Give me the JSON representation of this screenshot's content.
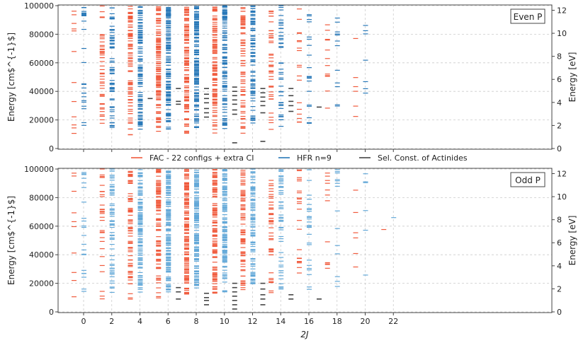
{
  "chart_data": {
    "type": "scatter",
    "description_x": "2J",
    "panels": [
      {
        "parity_label": "Even P",
        "ylabel_left": "Energy [cm$^{-1}$]",
        "ylabel_right": "Energy [eV]",
        "ylim": [
          0,
          100000
        ],
        "yticks": [
          0,
          20000,
          40000,
          60000,
          80000,
          100000
        ],
        "yticks_ev": [
          0,
          2,
          4,
          6,
          8,
          10,
          12
        ],
        "even_J": [
          0,
          2,
          4,
          6,
          8,
          10,
          12,
          14,
          16,
          18,
          20
        ],
        "fac_counts": [
          12,
          45,
          90,
          120,
          130,
          110,
          75,
          40,
          18,
          12,
          6
        ],
        "hfr_counts": [
          25,
          60,
          110,
          130,
          135,
          115,
          85,
          45,
          20,
          12,
          7
        ],
        "sel_levels": {
          "4": [
            35000
          ],
          "6": [
            42000,
            33000,
            31000
          ],
          "8": [
            42000,
            38000,
            35000,
            32000,
            28000,
            25000,
            22000
          ],
          "10": [
            43000,
            40000,
            37000,
            34000,
            31000,
            27000,
            24000,
            4000
          ],
          "12": [
            42000,
            39000,
            36000,
            33000,
            30000,
            25000,
            5000
          ],
          "14": [
            42000,
            37000,
            33000,
            30000,
            26000
          ],
          "16": [
            29000
          ]
        }
      },
      {
        "parity_label": "Odd P",
        "ylabel_left": "Energy [cm$^{-1}$]",
        "ylabel_right": "Energy [eV]",
        "ylim": [
          0,
          100000
        ],
        "yticks": [
          0,
          20000,
          40000,
          60000,
          80000,
          100000
        ],
        "yticks_ev": [
          0,
          2,
          4,
          6,
          8,
          10,
          12
        ],
        "even_J": [
          0,
          2,
          4,
          6,
          8,
          10,
          12,
          14,
          16,
          18,
          20,
          22
        ],
        "fac_counts": [
          10,
          30,
          70,
          110,
          130,
          120,
          80,
          45,
          22,
          12,
          6,
          1
        ],
        "hfr_counts": [
          22,
          60,
          115,
          140,
          140,
          125,
          90,
          50,
          25,
          14,
          6,
          1
        ],
        "sel_levels": {
          "6": [
            17000,
            14000,
            9000
          ],
          "8": [
            13000,
            10000,
            8000,
            5000
          ],
          "10": [
            20000,
            17000,
            14000,
            11000,
            8000,
            5000,
            2000
          ],
          "12": [
            20000,
            16000,
            12000,
            9000,
            5000
          ],
          "14": [
            12000,
            9000
          ],
          "16": [
            9000
          ]
        }
      }
    ],
    "x_ticks": [
      "0",
      "2",
      "4",
      "6",
      "8",
      "10",
      "12",
      "14",
      "16",
      "18",
      "20",
      "22"
    ],
    "xlabel": "2J",
    "legend": [
      {
        "label": "FAC - 22 configs + extra CI",
        "color": "#f05a3c"
      },
      {
        "label": "HFR n=9",
        "color": "#2878b8"
      },
      {
        "label": "Sel. Const. of Actinides",
        "color": "#444444"
      }
    ],
    "colors": {
      "fac": "#f05a3c",
      "hfr_even": "#2878b8",
      "hfr_odd": "#62a8d8",
      "sel": "#444444"
    }
  }
}
